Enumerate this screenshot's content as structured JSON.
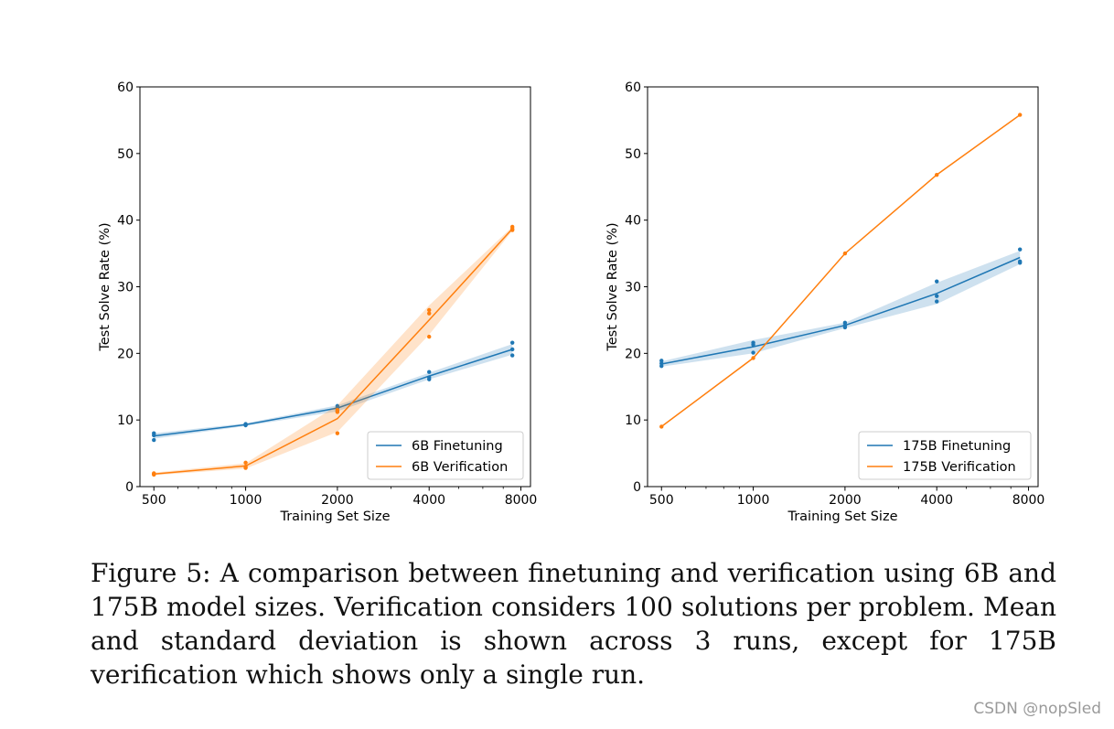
{
  "chart_data": [
    {
      "type": "line",
      "xscale": "log",
      "xlabel": "Training Set Size",
      "ylabel": "Test Solve Rate (%)",
      "ylim": [
        0,
        60
      ],
      "y_ticks": [
        0,
        10,
        20,
        30,
        40,
        50,
        60
      ],
      "x_ticks": [
        500,
        1000,
        2000,
        4000,
        8000
      ],
      "x_tick_labels": [
        "500",
        "1000",
        "2000",
        "4000",
        "8000"
      ],
      "legend_position": "lower-right",
      "series": [
        {
          "name": "6B Finetuning",
          "color": "#1f77b4",
          "x": [
            500,
            1000,
            2000,
            4000,
            7500
          ],
          "mean": [
            7.6,
            9.3,
            11.8,
            16.6,
            20.6
          ],
          "band_low": [
            7.2,
            9.1,
            11.3,
            16.1,
            19.8
          ],
          "band_high": [
            8.0,
            9.5,
            12.2,
            17.1,
            21.4
          ],
          "runs": [
            [
              7.0,
              7.7,
              8.0
            ],
            [
              9.2,
              9.3,
              9.4
            ],
            [
              11.3,
              11.8,
              12.1
            ],
            [
              16.1,
              16.4,
              17.2
            ],
            [
              19.7,
              20.6,
              21.6
            ]
          ]
        },
        {
          "name": "6B Verification",
          "color": "#ff7f0e",
          "x": [
            500,
            1000,
            2000,
            4000,
            7500
          ],
          "mean": [
            1.9,
            3.1,
            10.2,
            25.0,
            38.7
          ],
          "band_low": [
            1.7,
            2.7,
            8.2,
            22.8,
            38.4
          ],
          "band_high": [
            2.1,
            3.5,
            12.2,
            27.2,
            39.0
          ],
          "runs": [
            [
              1.8,
              1.9,
              2.0
            ],
            [
              2.8,
              3.0,
              3.6
            ],
            [
              8.0,
              11.2,
              11.5
            ],
            [
              22.5,
              26.0,
              26.5
            ],
            [
              38.5,
              38.7,
              39.0
            ]
          ]
        }
      ]
    },
    {
      "type": "line",
      "xscale": "log",
      "xlabel": "Training Set Size",
      "ylabel": "Test Solve Rate (%)",
      "ylim": [
        0,
        60
      ],
      "y_ticks": [
        0,
        10,
        20,
        30,
        40,
        50,
        60
      ],
      "x_ticks": [
        500,
        1000,
        2000,
        4000,
        8000
      ],
      "x_tick_labels": [
        "500",
        "1000",
        "2000",
        "4000",
        "8000"
      ],
      "legend_position": "lower-right",
      "series": [
        {
          "name": "175B Finetuning",
          "color": "#1f77b4",
          "x": [
            500,
            1000,
            2000,
            4000,
            7500
          ],
          "mean": [
            18.4,
            21.0,
            24.2,
            29.0,
            34.4
          ],
          "band_low": [
            18.0,
            20.0,
            23.8,
            27.4,
            33.4
          ],
          "band_high": [
            18.8,
            22.0,
            24.6,
            30.6,
            35.4
          ],
          "runs": [
            [
              18.1,
              18.5,
              18.9
            ],
            [
              20.1,
              21.3,
              21.6
            ],
            [
              23.9,
              24.2,
              24.6
            ],
            [
              27.8,
              28.6,
              30.8
            ],
            [
              33.6,
              33.8,
              35.6
            ]
          ]
        },
        {
          "name": "175B Verification",
          "color": "#ff7f0e",
          "x": [
            500,
            1000,
            2000,
            4000,
            7500
          ],
          "mean": [
            9.0,
            19.3,
            35.0,
            46.8,
            55.8
          ],
          "runs": [
            [
              9.0
            ],
            [
              19.3
            ],
            [
              35.0
            ],
            [
              46.8
            ],
            [
              55.8
            ]
          ]
        }
      ]
    }
  ],
  "caption": "Figure 5: A comparison between finetuning and verification using 6B and 175B model sizes. Verification considers 100 solutions per problem. Mean and standard deviation is shown across 3 runs, except for 175B verification which shows only a single run.",
  "watermark": "CSDN @nopSled"
}
